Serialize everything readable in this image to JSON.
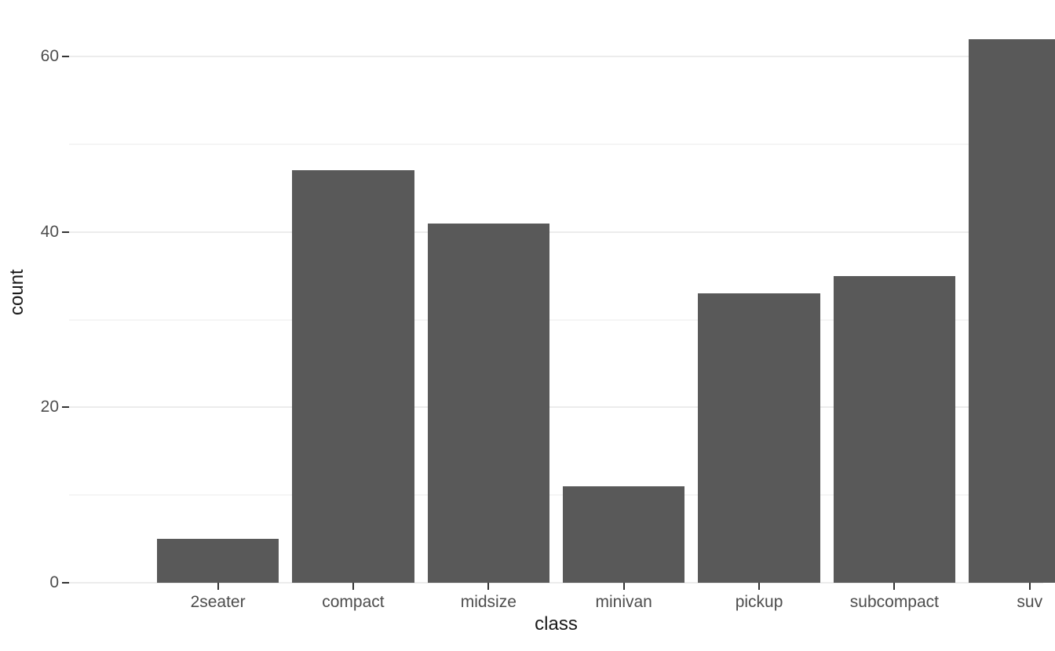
{
  "chart_data": {
    "type": "bar",
    "title": "",
    "categories": [
      "2seater",
      "compact",
      "midsize",
      "minivan",
      "pickup",
      "subcompact",
      "suv"
    ],
    "values": [
      5,
      47,
      41,
      11,
      33,
      35,
      62
    ],
    "xlabel": "class",
    "ylabel": "count",
    "yticks": [
      0,
      20,
      40,
      60
    ],
    "yticks_minor": [
      10,
      30,
      50
    ],
    "ylim": [
      0,
      65.1
    ],
    "grid": "horizontal-only",
    "legend": "none",
    "bar_relative_width": 0.9,
    "colors": {
      "bar_fill": "#595959",
      "background": "#FFFFFF",
      "major_gridline": "#ECECEC",
      "minor_gridline": "#F5F5F5",
      "tick_label": "#4D4D4D",
      "axis_title": "#1A1A1A",
      "tick_mark": "#333333"
    }
  }
}
